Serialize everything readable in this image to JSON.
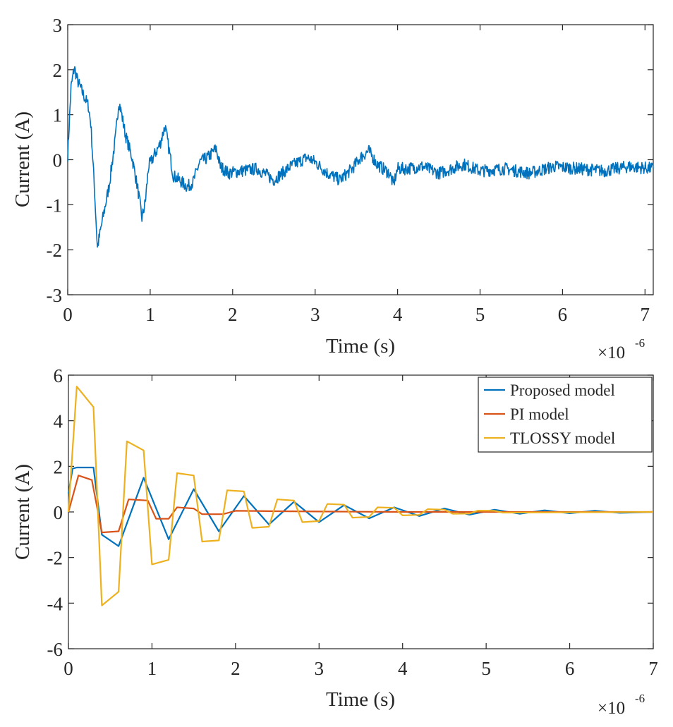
{
  "chart_data": [
    {
      "type": "line",
      "xlabel": "Time (s)",
      "ylabel": "Current (A)",
      "x_multiplier": "×10",
      "x_exponent": "-6",
      "xlim": [
        0,
        7.1
      ],
      "ylim": [
        -3,
        3
      ],
      "xticks": [
        0,
        1,
        2,
        3,
        4,
        5,
        6,
        7
      ],
      "yticks": [
        -3,
        -2,
        -1,
        0,
        1,
        2,
        3
      ],
      "grid": false,
      "series": [
        {
          "color": "#0072bd",
          "noisy": true,
          "x": [
            0,
            0.04,
            0.08,
            0.12,
            0.2,
            0.25,
            0.28,
            0.32,
            0.36,
            0.42,
            0.5,
            0.58,
            0.62,
            0.65,
            0.7,
            0.78,
            0.85,
            0.9,
            0.94,
            0.98,
            1.05,
            1.12,
            1.18,
            1.23,
            1.28,
            1.35,
            1.45,
            1.52,
            1.6,
            1.7,
            1.8,
            1.85,
            1.95,
            2.1,
            2.3,
            2.5,
            2.7,
            2.9,
            3.0,
            3.15,
            3.3,
            3.45,
            3.55,
            3.65,
            3.75,
            3.9,
            3.95,
            4.0,
            4.1,
            4.3,
            4.5,
            4.8,
            5.0,
            5.3,
            5.6,
            5.9,
            6.2,
            6.5,
            6.8,
            7.1
          ],
          "y": [
            0.1,
            1.6,
            2.05,
            1.75,
            1.4,
            1.2,
            0.8,
            -0.5,
            -1.95,
            -1.35,
            -0.6,
            0.5,
            1.3,
            1.05,
            0.55,
            0.05,
            -0.65,
            -1.3,
            -0.95,
            -0.15,
            0.1,
            0.35,
            0.75,
            0.2,
            -0.35,
            -0.45,
            -0.6,
            -0.5,
            -0.05,
            0.05,
            0.25,
            -0.15,
            -0.3,
            -0.25,
            -0.2,
            -0.45,
            -0.15,
            0.05,
            -0.05,
            -0.3,
            -0.45,
            -0.2,
            0.05,
            0.2,
            -0.1,
            -0.3,
            -0.55,
            -0.2,
            -0.2,
            -0.15,
            -0.3,
            -0.1,
            -0.25,
            -0.2,
            -0.3,
            -0.15,
            -0.2,
            -0.25,
            -0.15,
            -0.2
          ]
        }
      ]
    },
    {
      "type": "line",
      "xlabel": "Time (s)",
      "ylabel": "Current (A)",
      "x_multiplier": "×10",
      "x_exponent": "-6",
      "xlim": [
        0,
        7
      ],
      "ylim": [
        -6,
        6
      ],
      "xticks": [
        0,
        1,
        2,
        3,
        4,
        5,
        6,
        7
      ],
      "yticks": [
        -6,
        -4,
        -2,
        0,
        2,
        4,
        6
      ],
      "grid": false,
      "legend_position": "top-right",
      "series": [
        {
          "name": "Proposed model",
          "color": "#0072bd",
          "x": [
            0,
            0.05,
            0.1,
            0.3,
            0.4,
            0.6,
            0.9,
            1.2,
            1.5,
            1.8,
            2.1,
            2.4,
            2.7,
            3.0,
            3.3,
            3.6,
            3.9,
            4.2,
            4.5,
            4.8,
            5.1,
            5.4,
            5.7,
            6.0,
            6.3,
            6.6,
            7.0
          ],
          "y": [
            0.8,
            1.9,
            1.95,
            1.95,
            -1.0,
            -1.5,
            1.5,
            -1.2,
            1.0,
            -0.85,
            0.7,
            -0.55,
            0.45,
            -0.45,
            0.3,
            -0.28,
            0.2,
            -0.18,
            0.15,
            -0.12,
            0.1,
            -0.08,
            0.07,
            -0.06,
            0.05,
            -0.04,
            0.0
          ]
        },
        {
          "name": "PI model",
          "color": "#d95319",
          "x": [
            0,
            0.12,
            0.28,
            0.4,
            0.6,
            0.72,
            0.95,
            1.05,
            1.2,
            1.3,
            1.5,
            1.6,
            1.85,
            2.0,
            2.5,
            3.0,
            3.5,
            4.0,
            7.0
          ],
          "y": [
            0,
            1.6,
            1.4,
            -0.9,
            -0.85,
            0.55,
            0.5,
            -0.3,
            -0.3,
            0.2,
            0.15,
            -0.1,
            -0.1,
            0.05,
            0.03,
            0.02,
            0.01,
            0.0,
            0.0
          ]
        },
        {
          "name": "TLOSSY model",
          "color": "#edb120",
          "x": [
            0,
            0.1,
            0.3,
            0.4,
            0.6,
            0.7,
            0.9,
            1.0,
            1.2,
            1.3,
            1.5,
            1.6,
            1.8,
            1.9,
            2.1,
            2.2,
            2.4,
            2.5,
            2.7,
            2.8,
            3.0,
            3.1,
            3.3,
            3.4,
            3.6,
            3.7,
            3.9,
            4.0,
            4.2,
            4.3,
            4.5,
            4.6,
            4.8,
            4.9,
            5.1,
            5.2,
            7.0
          ],
          "y": [
            0,
            5.5,
            4.6,
            -4.1,
            -3.5,
            3.1,
            2.7,
            -2.3,
            -2.1,
            1.7,
            1.6,
            -1.3,
            -1.25,
            0.95,
            0.9,
            -0.7,
            -0.65,
            0.55,
            0.5,
            -0.45,
            -0.4,
            0.35,
            0.32,
            -0.25,
            -0.22,
            0.2,
            0.18,
            -0.15,
            -0.13,
            0.12,
            0.1,
            -0.08,
            -0.07,
            0.06,
            0.05,
            -0.03,
            0.0
          ]
        }
      ]
    }
  ]
}
